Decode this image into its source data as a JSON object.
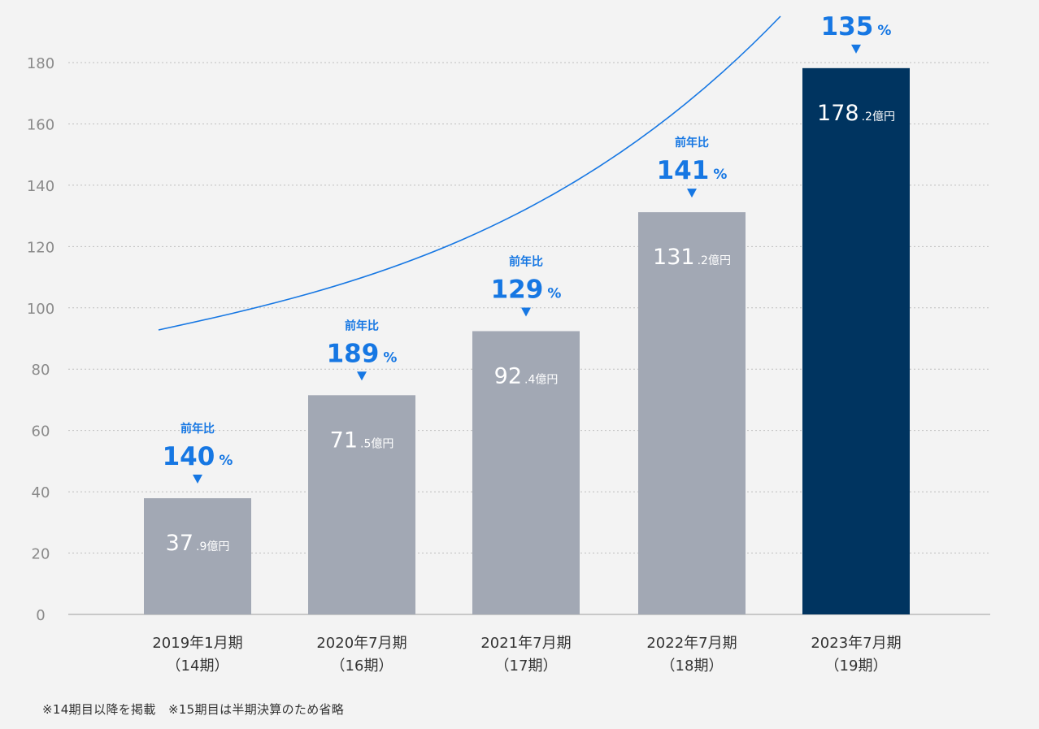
{
  "colors": {
    "background": "#f3f3f3",
    "bar_default": "#a2a8b4",
    "bar_highlight": "#003460",
    "accent": "#1677e3",
    "grid": "#bfbfbf",
    "axis_text": "#8a8a8a",
    "category_text": "#333333",
    "bar_label_text": "#ffffff"
  },
  "chart_data": {
    "type": "bar",
    "categories": [
      [
        "2019年1月期",
        "（14期）"
      ],
      [
        "2020年7月期",
        "（16期）"
      ],
      [
        "2021年7月期",
        "（17期）"
      ],
      [
        "2022年7月期",
        "（18期）"
      ],
      [
        "2023年7月期",
        "（19期）"
      ]
    ],
    "values": [
      37.9,
      71.5,
      92.4,
      131.2,
      178.2
    ],
    "bar_labels": [
      {
        "main": "37",
        "small": ".9億円"
      },
      {
        "main": "71",
        "small": ".5億円"
      },
      {
        "main": "92",
        "small": ".4億円"
      },
      {
        "main": "131",
        "small": ".2億円"
      },
      {
        "main": "178",
        "small": ".2億円"
      }
    ],
    "growth": [
      {
        "label": "前年比",
        "value": "140",
        "unit": "%"
      },
      {
        "label": "前年比",
        "value": "189",
        "unit": "%"
      },
      {
        "label": "前年比",
        "value": "129",
        "unit": "%"
      },
      {
        "label": "前年比",
        "value": "141",
        "unit": "%"
      },
      {
        "label": "",
        "value": "135",
        "unit": "%"
      }
    ],
    "highlight_index": 4,
    "ylim": [
      0,
      190
    ],
    "yticks": [
      0,
      20,
      40,
      60,
      80,
      100,
      120,
      140,
      160,
      180
    ],
    "grid": true,
    "trend_curve": true,
    "title": "",
    "xlabel": "",
    "ylabel": ""
  },
  "footnote": "※14期目以降を掲載　※15期目は半期決算のため省略"
}
